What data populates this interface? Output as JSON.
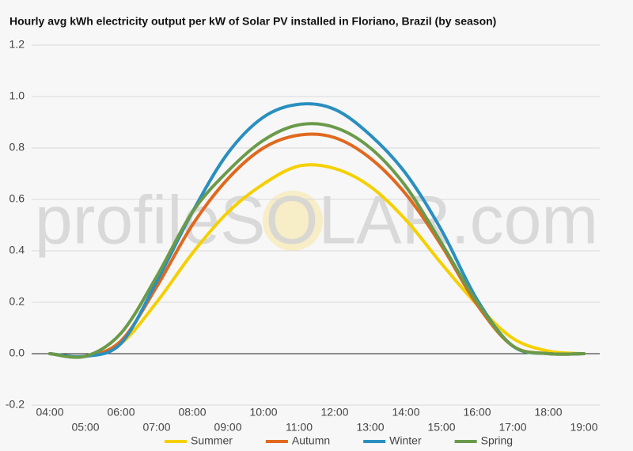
{
  "chart_data": {
    "type": "line",
    "title": "Hourly avg kWh electricity output per kW of Solar PV installed in Floriano, Brazil (by season)",
    "watermark": "profileSOLAR.com",
    "categories": [
      "04:00",
      "05:00",
      "06:00",
      "07:00",
      "08:00",
      "09:00",
      "10:00",
      "11:00",
      "12:00",
      "13:00",
      "14:00",
      "15:00",
      "16:00",
      "17:00",
      "18:00",
      "19:00"
    ],
    "series": [
      {
        "name": "Summer",
        "color": "#f5d000",
        "values": [
          0,
          -0.01,
          0.04,
          0.2,
          0.39,
          0.55,
          0.66,
          0.73,
          0.72,
          0.65,
          0.52,
          0.35,
          0.19,
          0.06,
          0.01,
          0
        ]
      },
      {
        "name": "Autumn",
        "color": "#e0691f",
        "values": [
          0,
          -0.01,
          0.05,
          0.26,
          0.5,
          0.68,
          0.8,
          0.85,
          0.84,
          0.76,
          0.62,
          0.42,
          0.19,
          0.03,
          0,
          0
        ]
      },
      {
        "name": "Winter",
        "color": "#2a8fbf",
        "values": [
          0,
          -0.01,
          0.04,
          0.28,
          0.55,
          0.78,
          0.92,
          0.97,
          0.95,
          0.85,
          0.7,
          0.48,
          0.21,
          0.03,
          0,
          0
        ]
      },
      {
        "name": "Spring",
        "color": "#6a9a4a",
        "values": [
          0,
          -0.01,
          0.08,
          0.3,
          0.55,
          0.71,
          0.83,
          0.89,
          0.88,
          0.8,
          0.65,
          0.43,
          0.2,
          0.03,
          0,
          0
        ]
      }
    ],
    "ylim": [
      -0.2,
      1.2
    ],
    "yticks": [
      -0.2,
      {
        "value": 0,
        "label": "0.0"
      },
      0.2,
      0.4,
      0.6,
      0.8,
      {
        "value": 1,
        "label": "1.0"
      },
      1.2
    ],
    "grid": true
  }
}
